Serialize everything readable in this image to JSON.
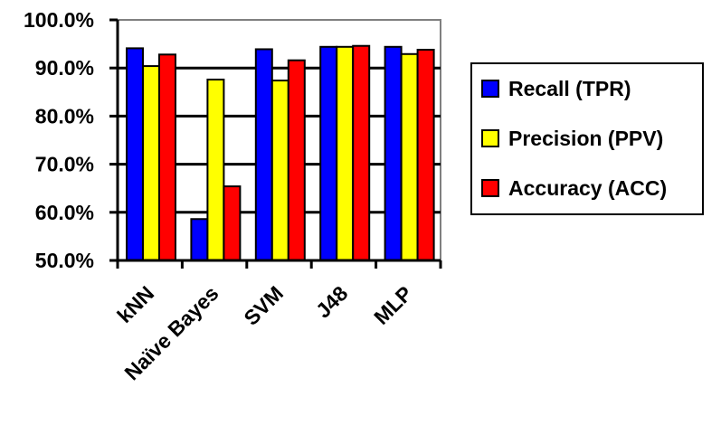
{
  "chart_data": {
    "type": "bar",
    "title": "",
    "xlabel": "",
    "ylabel": "",
    "categories": [
      "kNN",
      "Naïve Bayes",
      "SVM",
      "J48",
      "MLP"
    ],
    "series": [
      {
        "name": "Recall (TPR)",
        "color": "#0000ff",
        "values": [
          94.1,
          58.6,
          93.9,
          94.4,
          94.4
        ]
      },
      {
        "name": "Precision (PPV)",
        "color": "#ffff00",
        "values": [
          90.4,
          87.6,
          87.4,
          94.4,
          92.9
        ]
      },
      {
        "name": "Accuracy (ACC)",
        "color": "#ff0000",
        "values": [
          92.8,
          65.4,
          91.6,
          94.6,
          93.8
        ]
      }
    ],
    "ylim": [
      50,
      100
    ],
    "yticks": [
      50,
      60,
      70,
      80,
      90,
      100
    ],
    "ytick_labels": [
      "50.0%",
      "60.0%",
      "70.0%",
      "80.0%",
      "90.0%",
      "100.0%"
    ],
    "grid": true,
    "legend_position": "right"
  }
}
